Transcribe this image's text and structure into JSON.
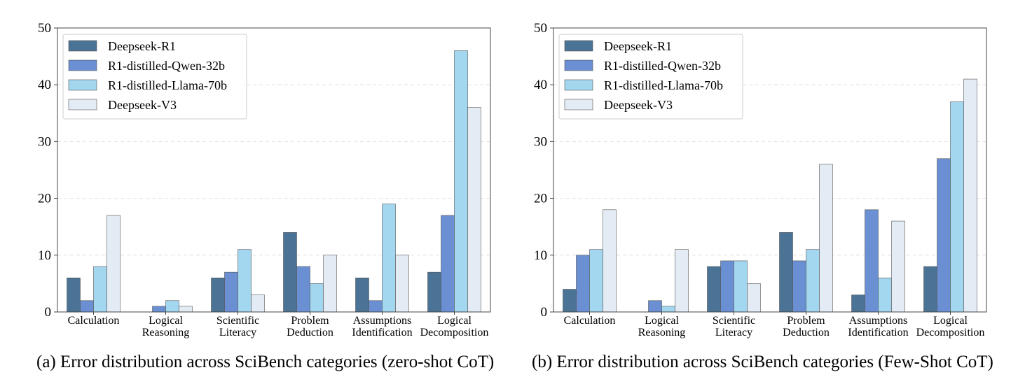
{
  "chart_data": [
    {
      "type": "bar",
      "caption": "(a) Error distribution across SciBench categories (zero-shot CoT)",
      "categories": [
        "Calculation",
        "Logical Reasoning",
        "Scientific Literacy",
        "Problem Deduction",
        "Assumptions Identification",
        "Logical Decomposition"
      ],
      "category_lines": [
        [
          "Calculation"
        ],
        [
          "Logical",
          "Reasoning"
        ],
        [
          "Scientific",
          "Literacy"
        ],
        [
          "Problem",
          "Deduction"
        ],
        [
          "Assumptions",
          "Identification"
        ],
        [
          "Logical",
          "Decomposition"
        ]
      ],
      "series": [
        {
          "name": "Deepseek-R1",
          "color": "#4a7396",
          "values": [
            6,
            0,
            6,
            14,
            6,
            7
          ]
        },
        {
          "name": "R1-distilled-Qwen-32b",
          "color": "#6a8fd2",
          "values": [
            2,
            1,
            7,
            8,
            2,
            17
          ]
        },
        {
          "name": "R1-distilled-Llama-70b",
          "color": "#a3d6ef",
          "values": [
            8,
            2,
            11,
            5,
            19,
            46
          ]
        },
        {
          "name": "Deepseek-V3",
          "color": "#e3ecf5",
          "values": [
            17,
            1,
            3,
            10,
            10,
            36
          ]
        }
      ],
      "ylim": [
        0,
        50
      ],
      "yticks": [
        0,
        10,
        20,
        30,
        40,
        50
      ],
      "grid": true,
      "legend_position": "top-left"
    },
    {
      "type": "bar",
      "caption": "(b) Error distribution across SciBench categories (Few-Shot CoT)",
      "categories": [
        "Calculation",
        "Logical Reasoning",
        "Scientific Literacy",
        "Problem Deduction",
        "Assumptions Identification",
        "Logical Decomposition"
      ],
      "category_lines": [
        [
          "Calculation"
        ],
        [
          "Logical",
          "Reasoning"
        ],
        [
          "Scientific",
          "Literacy"
        ],
        [
          "Problem",
          "Deduction"
        ],
        [
          "Assumptions",
          "Identification"
        ],
        [
          "Logical",
          "Decomposition"
        ]
      ],
      "series": [
        {
          "name": "Deepseek-R1",
          "color": "#4a7396",
          "values": [
            4,
            0,
            8,
            14,
            3,
            8
          ]
        },
        {
          "name": "R1-distilled-Qwen-32b",
          "color": "#6a8fd2",
          "values": [
            10,
            2,
            9,
            9,
            18,
            27
          ]
        },
        {
          "name": "R1-distilled-Llama-70b",
          "color": "#a3d6ef",
          "values": [
            11,
            1,
            9,
            11,
            6,
            37
          ]
        },
        {
          "name": "Deepseek-V3",
          "color": "#e3ecf5",
          "values": [
            18,
            11,
            5,
            26,
            16,
            41
          ]
        }
      ],
      "ylim": [
        0,
        50
      ],
      "yticks": [
        0,
        10,
        20,
        30,
        40,
        50
      ],
      "grid": true,
      "legend_position": "top-left"
    }
  ]
}
